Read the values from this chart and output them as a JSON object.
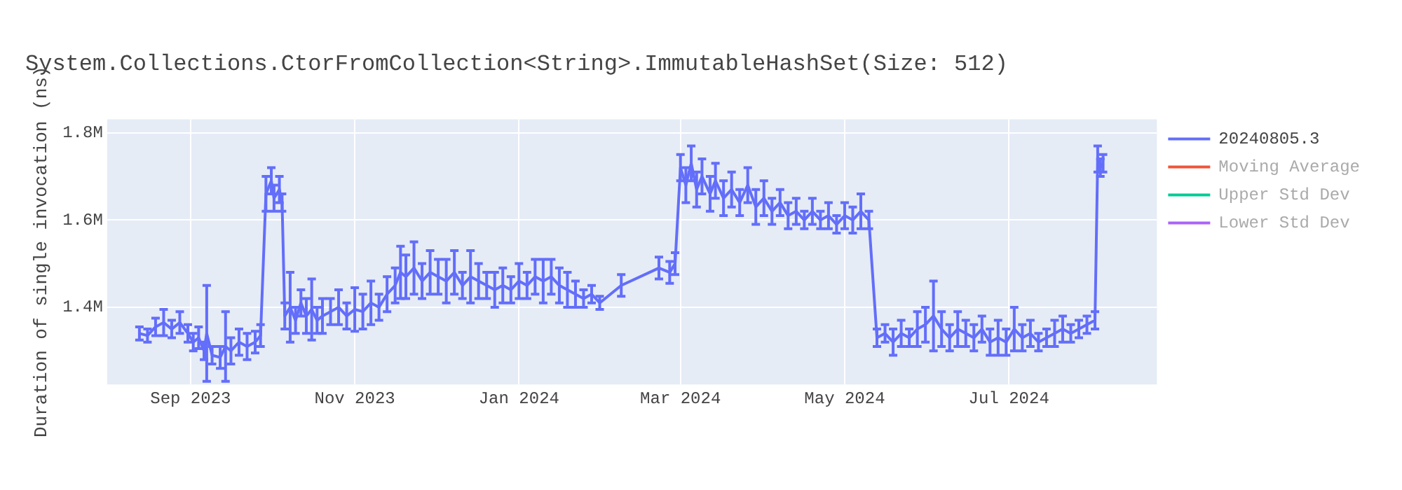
{
  "chart_data": {
    "type": "line",
    "title": "System.Collections.CtorFromCollection<String>.ImmutableHashSet(Size: 512)",
    "ylabel": "Duration of single invocation (ns)",
    "xlim": [
      "2023-08-01",
      "2024-08-25"
    ],
    "xticks": [
      {
        "value": "2023-09-01",
        "label": "Sep 2023"
      },
      {
        "value": "2023-11-01",
        "label": "Nov 2023"
      },
      {
        "value": "2024-01-01",
        "label": "Jan 2024"
      },
      {
        "value": "2024-03-01",
        "label": "Mar 2024"
      },
      {
        "value": "2024-05-01",
        "label": "May 2024"
      },
      {
        "value": "2024-07-01",
        "label": "Jul 2024"
      }
    ],
    "ylim": [
      1223000,
      1831000
    ],
    "yticks": [
      {
        "value": 1400000,
        "label": "1.4M"
      },
      {
        "value": 1600000,
        "label": "1.6M"
      },
      {
        "value": 1800000,
        "label": "1.8M"
      }
    ],
    "grid": true,
    "legend": "top right",
    "marker": "none",
    "line_style": "solid",
    "series": [
      {
        "name": "20240805.3",
        "color": "#636efa",
        "x": [
          "2023-08-13",
          "2023-08-16",
          "2023-08-19",
          "2023-08-22",
          "2023-08-25",
          "2023-08-28",
          "2023-08-31",
          "2023-09-02",
          "2023-09-04",
          "2023-09-06",
          "2023-09-07",
          "2023-09-09",
          "2023-09-12",
          "2023-09-14",
          "2023-09-16",
          "2023-09-19",
          "2023-09-22",
          "2023-09-25",
          "2023-09-27",
          "2023-09-29",
          "2023-10-01",
          "2023-10-02",
          "2023-10-04",
          "2023-10-05",
          "2023-10-06",
          "2023-10-08",
          "2023-10-10",
          "2023-10-12",
          "2023-10-14",
          "2023-10-16",
          "2023-10-18",
          "2023-10-20",
          "2023-10-23",
          "2023-10-26",
          "2023-10-29",
          "2023-11-01",
          "2023-11-04",
          "2023-11-07",
          "2023-11-10",
          "2023-11-13",
          "2023-11-16",
          "2023-11-18",
          "2023-11-20",
          "2023-11-23",
          "2023-11-26",
          "2023-11-29",
          "2023-12-02",
          "2023-12-05",
          "2023-12-08",
          "2023-12-11",
          "2023-12-14",
          "2023-12-17",
          "2023-12-20",
          "2023-12-23",
          "2023-12-26",
          "2023-12-29",
          "2024-01-01",
          "2024-01-04",
          "2024-01-07",
          "2024-01-10",
          "2024-01-13",
          "2024-01-16",
          "2024-01-19",
          "2024-01-22",
          "2024-01-25",
          "2024-01-28",
          "2024-01-31",
          "2024-02-08",
          "2024-02-22",
          "2024-02-26",
          "2024-02-28",
          "2024-03-01",
          "2024-03-03",
          "2024-03-05",
          "2024-03-07",
          "2024-03-09",
          "2024-03-12",
          "2024-03-14",
          "2024-03-17",
          "2024-03-20",
          "2024-03-23",
          "2024-03-26",
          "2024-03-29",
          "2024-04-01",
          "2024-04-04",
          "2024-04-07",
          "2024-04-10",
          "2024-04-13",
          "2024-04-16",
          "2024-04-19",
          "2024-04-22",
          "2024-04-25",
          "2024-04-28",
          "2024-05-01",
          "2024-05-04",
          "2024-05-07",
          "2024-05-10",
          "2024-05-13",
          "2024-05-16",
          "2024-05-19",
          "2024-05-22",
          "2024-05-25",
          "2024-05-28",
          "2024-05-31",
          "2024-06-03",
          "2024-06-06",
          "2024-06-09",
          "2024-06-12",
          "2024-06-15",
          "2024-06-18",
          "2024-06-21",
          "2024-06-24",
          "2024-06-27",
          "2024-06-30",
          "2024-07-03",
          "2024-07-06",
          "2024-07-09",
          "2024-07-12",
          "2024-07-15",
          "2024-07-18",
          "2024-07-21",
          "2024-07-24",
          "2024-07-27",
          "2024-07-30",
          "2024-08-02",
          "2024-08-03",
          "2024-08-04",
          "2024-08-05"
        ],
        "values": [
          1340000,
          1335000,
          1355000,
          1365000,
          1350000,
          1365000,
          1340000,
          1320000,
          1330000,
          1300000,
          1340000,
          1290000,
          1285000,
          1310000,
          1300000,
          1320000,
          1310000,
          1320000,
          1335000,
          1660000,
          1690000,
          1650000,
          1670000,
          1640000,
          1380000,
          1400000,
          1370000,
          1410000,
          1380000,
          1395000,
          1370000,
          1380000,
          1390000,
          1400000,
          1380000,
          1395000,
          1390000,
          1410000,
          1400000,
          1430000,
          1450000,
          1480000,
          1470000,
          1490000,
          1460000,
          1480000,
          1470000,
          1460000,
          1480000,
          1450000,
          1470000,
          1460000,
          1450000,
          1440000,
          1450000,
          1440000,
          1460000,
          1450000,
          1470000,
          1460000,
          1470000,
          1450000,
          1440000,
          1430000,
          1420000,
          1430000,
          1410000,
          1450000,
          1490000,
          1480000,
          1500000,
          1720000,
          1680000,
          1730000,
          1670000,
          1700000,
          1660000,
          1690000,
          1650000,
          1670000,
          1640000,
          1680000,
          1630000,
          1650000,
          1620000,
          1640000,
          1610000,
          1620000,
          1600000,
          1620000,
          1600000,
          1610000,
          1590000,
          1610000,
          1600000,
          1620000,
          1600000,
          1330000,
          1340000,
          1320000,
          1340000,
          1330000,
          1350000,
          1360000,
          1380000,
          1350000,
          1330000,
          1350000,
          1340000,
          1330000,
          1350000,
          1320000,
          1330000,
          1320000,
          1350000,
          1330000,
          1340000,
          1320000,
          1330000,
          1340000,
          1350000,
          1340000,
          1350000,
          1360000,
          1370000,
          1740000,
          1720000,
          1730000
        ],
        "errors": [
          15000,
          15000,
          20000,
          30000,
          20000,
          25000,
          20000,
          20000,
          25000,
          20000,
          110000,
          20000,
          25000,
          80000,
          30000,
          30000,
          30000,
          25000,
          25000,
          40000,
          30000,
          30000,
          30000,
          20000,
          30000,
          80000,
          30000,
          30000,
          40000,
          70000,
          30000,
          40000,
          30000,
          40000,
          30000,
          50000,
          40000,
          50000,
          30000,
          40000,
          40000,
          60000,
          50000,
          60000,
          40000,
          50000,
          40000,
          50000,
          50000,
          30000,
          60000,
          40000,
          30000,
          40000,
          40000,
          30000,
          40000,
          30000,
          40000,
          50000,
          40000,
          40000,
          40000,
          30000,
          20000,
          20000,
          15000,
          25000,
          25000,
          25000,
          25000,
          30000,
          40000,
          40000,
          40000,
          40000,
          40000,
          40000,
          40000,
          40000,
          30000,
          40000,
          40000,
          40000,
          30000,
          30000,
          30000,
          30000,
          20000,
          30000,
          20000,
          30000,
          20000,
          30000,
          30000,
          40000,
          20000,
          20000,
          20000,
          30000,
          30000,
          20000,
          40000,
          40000,
          80000,
          40000,
          30000,
          40000,
          30000,
          30000,
          30000,
          30000,
          40000,
          30000,
          50000,
          30000,
          30000,
          20000,
          20000,
          30000,
          30000,
          20000,
          20000,
          20000,
          20000,
          30000,
          20000,
          20000
        ]
      },
      {
        "name": "Moving Average",
        "color": "#ef553b"
      },
      {
        "name": "Upper Std Dev",
        "color": "#00cc96"
      },
      {
        "name": "Lower Std Dev",
        "color": "#ab63fa"
      }
    ]
  }
}
